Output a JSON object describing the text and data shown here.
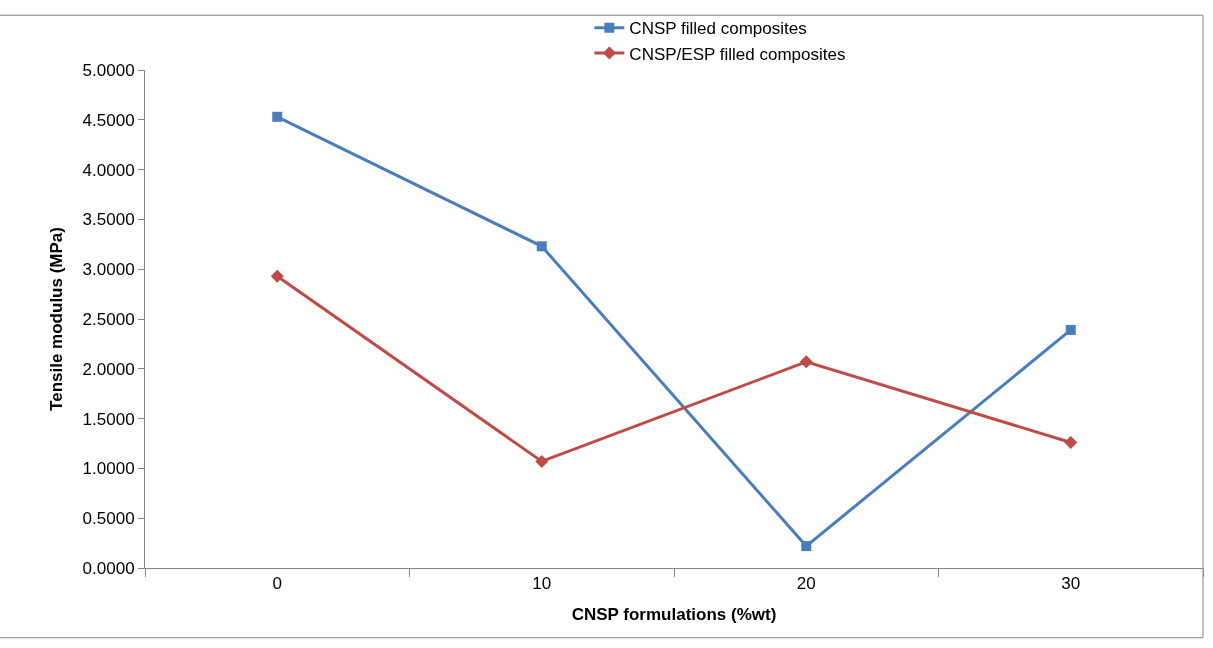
{
  "chart_data": {
    "type": "line",
    "xlabel": "CNSP formulations (%wt)",
    "ylabel": "Tensile modulus (MPa)",
    "categories": [
      "0",
      "10",
      "20",
      "30"
    ],
    "series": [
      {
        "name": "CNSP filled composites",
        "color": "#4a7ebb",
        "values": [
          4.53,
          3.23,
          0.22,
          2.39
        ],
        "marker": "square"
      },
      {
        "name": "CNSP/ESP filled composites",
        "color": "#be4b48",
        "values": [
          2.93,
          1.07,
          2.07,
          1.26
        ],
        "marker": "diamond"
      }
    ],
    "ylim": [
      0,
      5
    ],
    "yticks": [
      {
        "value": 0,
        "label": "0.0000"
      },
      {
        "value": 0.5,
        "label": "0.5000"
      },
      {
        "value": 1,
        "label": "1.0000"
      },
      {
        "value": 1.5,
        "label": "1.5000"
      },
      {
        "value": 2,
        "label": "2.0000"
      },
      {
        "value": 2.5,
        "label": "2.5000"
      },
      {
        "value": 3,
        "label": "3.0000"
      },
      {
        "value": 3.5,
        "label": "3.5000"
      },
      {
        "value": 4,
        "label": "4.0000"
      },
      {
        "value": 4.5,
        "label": "4.5000"
      },
      {
        "value": 5,
        "label": "5.0000"
      }
    ],
    "legend": "top",
    "line_style": "solid"
  }
}
